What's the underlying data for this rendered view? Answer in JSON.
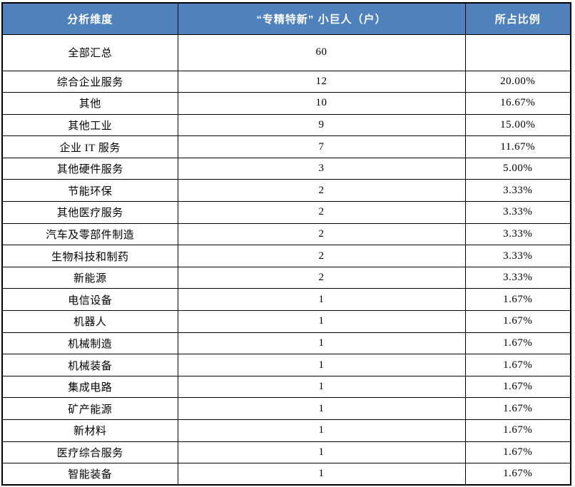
{
  "colors": {
    "header_fill": "#4F81BD",
    "header_text": "#FFFFFF",
    "border": "#000000",
    "body_text": "#000000",
    "background": "#FFFFFF"
  },
  "chart_data": {
    "type": "table",
    "title": "",
    "columns": [
      "分析维度",
      "“专精特新” 小巨人（户）",
      "所占比例"
    ],
    "rows": [
      {
        "dimension": "全部汇总",
        "count": "60",
        "percent": ""
      },
      {
        "dimension": "综合企业服务",
        "count": "12",
        "percent": "20.00%"
      },
      {
        "dimension": "其他",
        "count": "10",
        "percent": "16.67%"
      },
      {
        "dimension": "其他工业",
        "count": "9",
        "percent": "15.00%"
      },
      {
        "dimension": "企业 IT 服务",
        "count": "7",
        "percent": "11.67%"
      },
      {
        "dimension": "其他硬件服务",
        "count": "3",
        "percent": "5.00%"
      },
      {
        "dimension": "节能环保",
        "count": "2",
        "percent": "3.33%"
      },
      {
        "dimension": "其他医疗服务",
        "count": "2",
        "percent": "3.33%"
      },
      {
        "dimension": "汽车及零部件制造",
        "count": "2",
        "percent": "3.33%"
      },
      {
        "dimension": "生物科技和制药",
        "count": "2",
        "percent": "3.33%"
      },
      {
        "dimension": "新能源",
        "count": "2",
        "percent": "3.33%"
      },
      {
        "dimension": "电信设备",
        "count": "1",
        "percent": "1.67%"
      },
      {
        "dimension": "机器人",
        "count": "1",
        "percent": "1.67%"
      },
      {
        "dimension": "机械制造",
        "count": "1",
        "percent": "1.67%"
      },
      {
        "dimension": "机械装备",
        "count": "1",
        "percent": "1.67%"
      },
      {
        "dimension": "集成电路",
        "count": "1",
        "percent": "1.67%"
      },
      {
        "dimension": "矿产能源",
        "count": "1",
        "percent": "1.67%"
      },
      {
        "dimension": "新材料",
        "count": "1",
        "percent": "1.67%"
      },
      {
        "dimension": "医疗综合服务",
        "count": "1",
        "percent": "1.67%"
      },
      {
        "dimension": "智能装备",
        "count": "1",
        "percent": "1.67%"
      }
    ]
  }
}
